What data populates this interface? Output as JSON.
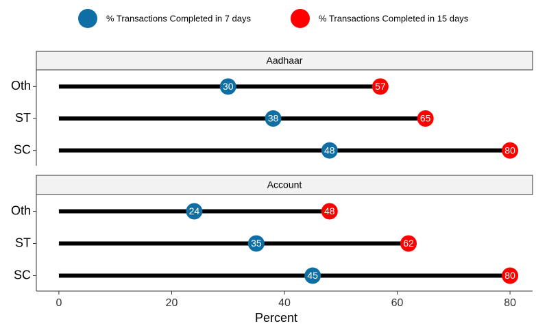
{
  "chart_data": {
    "type": "dot",
    "xlabel": "Percent",
    "xlim": [
      -4,
      84
    ],
    "xticks": [
      0,
      20,
      40,
      60,
      80
    ],
    "series": [
      {
        "name": "% Transactions Completed in 7 days",
        "color": "#0f6ea3"
      },
      {
        "name": "% Transactions Completed in 15 days",
        "color": "#ff0000"
      }
    ],
    "facets": [
      {
        "title": "Aadhaar",
        "categories": [
          "Oth",
          "ST",
          "SC"
        ],
        "series": [
          {
            "values": [
              30,
              38,
              48
            ]
          },
          {
            "values": [
              57,
              65,
              80
            ]
          }
        ]
      },
      {
        "title": "Account",
        "categories": [
          "Oth",
          "ST",
          "SC"
        ],
        "series": [
          {
            "values": [
              24,
              35,
              45
            ]
          },
          {
            "values": [
              48,
              62,
              80
            ]
          }
        ]
      }
    ]
  }
}
